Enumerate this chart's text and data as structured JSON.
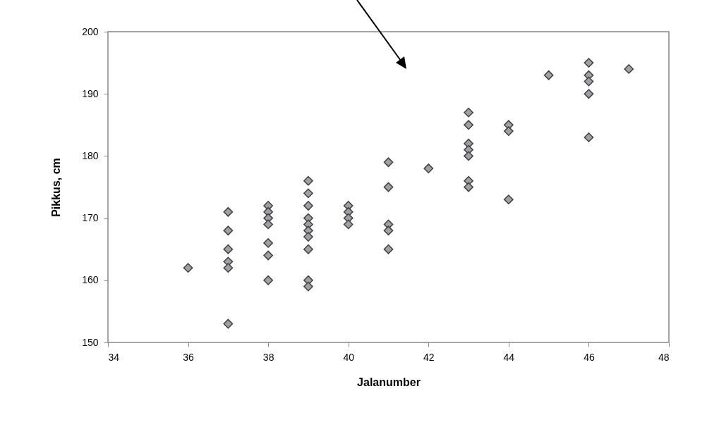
{
  "chart_data": {
    "type": "scatter",
    "xlabel": "Jalanumber",
    "ylabel": "Pikkus, cm",
    "marker": "diamond",
    "grid": false,
    "legend": false,
    "xlim": [
      34,
      48
    ],
    "xticks": [
      34,
      36,
      38,
      40,
      42,
      44,
      46,
      48
    ],
    "ylim": [
      150,
      200
    ],
    "yticks": [
      150,
      160,
      170,
      180,
      190,
      200
    ],
    "series": [
      {
        "color": "#a0a0a4",
        "x": [
          36,
          37,
          37,
          37,
          37,
          37,
          37,
          38,
          38,
          38,
          38,
          38,
          38,
          38,
          39,
          39,
          39,
          39,
          39,
          39,
          39,
          39,
          39,
          39,
          40,
          40,
          40,
          40,
          41,
          41,
          41,
          41,
          41,
          42,
          43,
          43,
          43,
          43,
          43,
          43,
          43,
          44,
          44,
          44,
          45,
          46,
          46,
          46,
          46,
          46,
          47
        ],
        "values": [
          162,
          171,
          168,
          165,
          163,
          162,
          153,
          172,
          171,
          170,
          169,
          166,
          164,
          160,
          176,
          174,
          172,
          170,
          169,
          168,
          167,
          165,
          160,
          159,
          172,
          171,
          170,
          169,
          179,
          175,
          169,
          168,
          165,
          178,
          187,
          185,
          182,
          181,
          180,
          176,
          175,
          185,
          184,
          173,
          193,
          195,
          193,
          192,
          190,
          183,
          194
        ]
      }
    ]
  }
}
